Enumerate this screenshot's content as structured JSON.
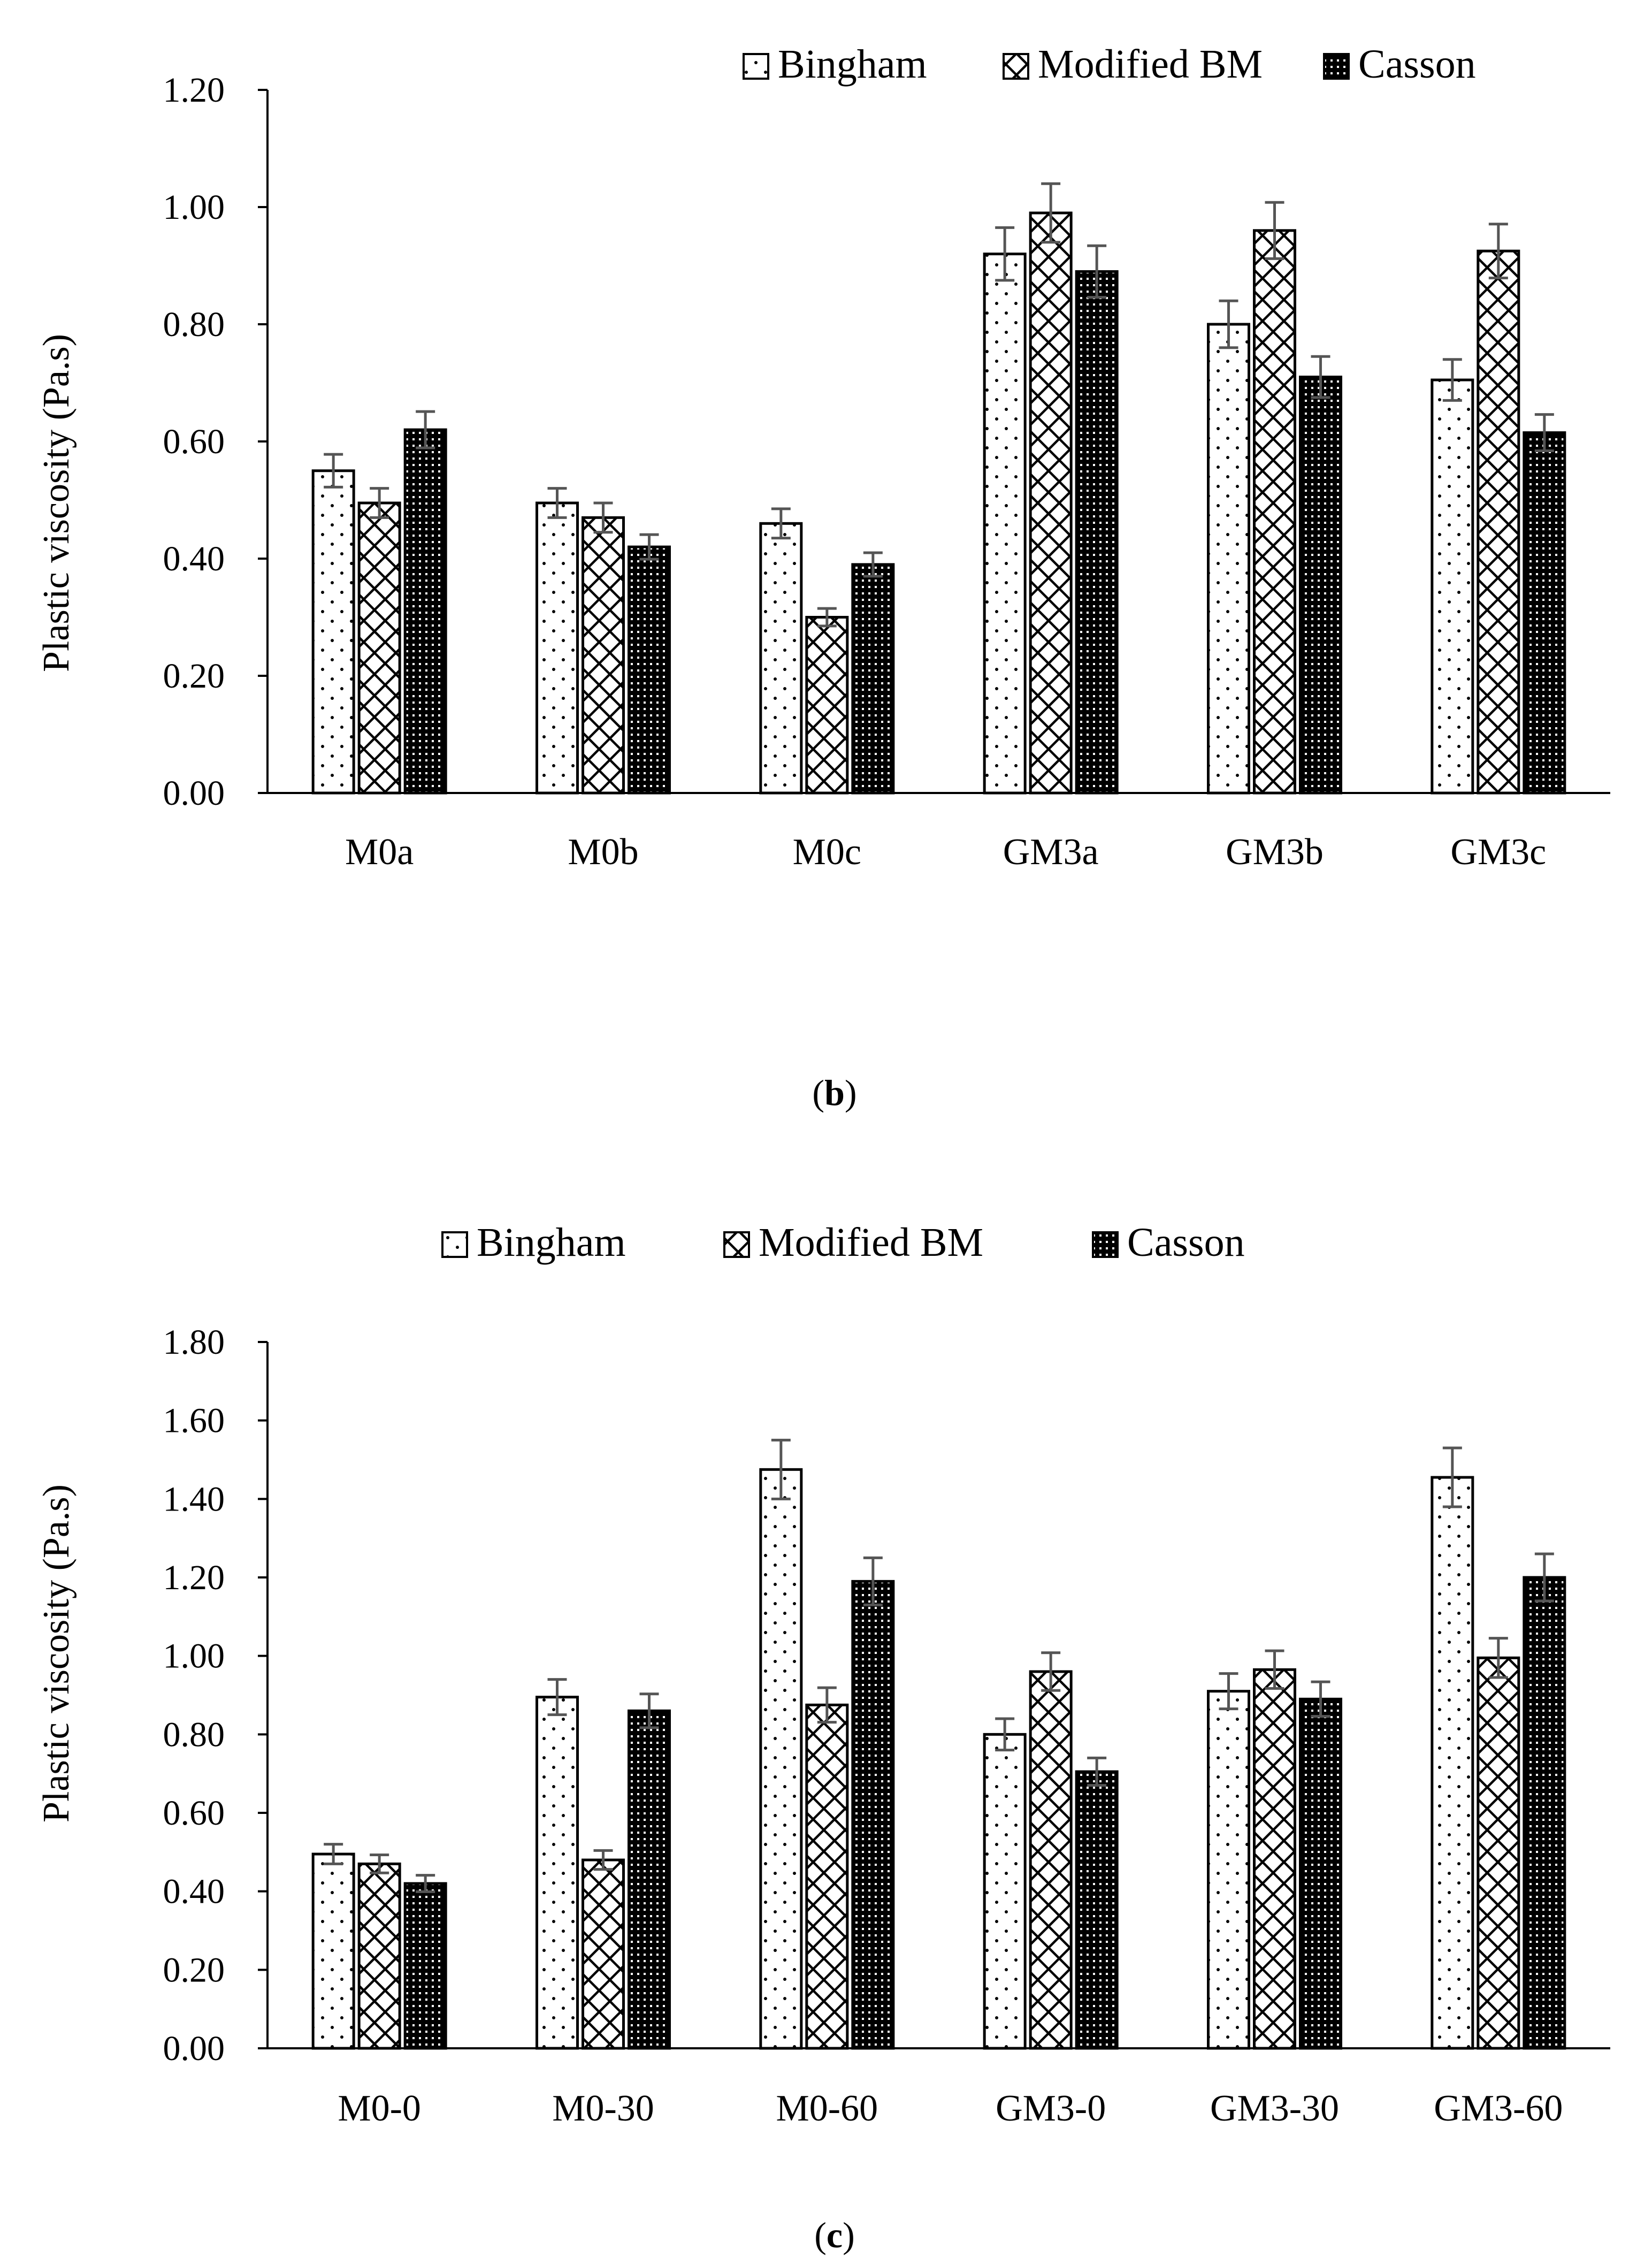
{
  "legend_labels": [
    "Bingham",
    "Modified BM",
    "Casson"
  ],
  "chart_data": [
    {
      "panel": "b",
      "type": "bar",
      "caption": "(b)",
      "ylabel": "Plastic viscosity (Pa.s)",
      "xlabel": "",
      "categories": [
        "M0a",
        "M0b",
        "M0c",
        "GM3a",
        "GM3b",
        "GM3c"
      ],
      "ylim": [
        0,
        1.2
      ],
      "yticks": [
        "0.00",
        "0.20",
        "0.40",
        "0.60",
        "0.80",
        "1.00",
        "1.20"
      ],
      "legend_position": "top-right",
      "grid": false,
      "series": [
        {
          "name": "Bingham",
          "values": [
            0.55,
            0.495,
            0.46,
            0.92,
            0.8,
            0.705
          ],
          "errors": [
            0.028,
            0.025,
            0.025,
            0.045,
            0.04,
            0.035
          ]
        },
        {
          "name": "Modified BM",
          "values": [
            0.495,
            0.47,
            0.3,
            0.99,
            0.96,
            0.925
          ],
          "errors": [
            0.025,
            0.025,
            0.015,
            0.05,
            0.048,
            0.046
          ]
        },
        {
          "name": "Casson",
          "values": [
            0.62,
            0.42,
            0.39,
            0.89,
            0.71,
            0.615
          ],
          "errors": [
            0.031,
            0.021,
            0.02,
            0.044,
            0.035,
            0.031
          ]
        }
      ]
    },
    {
      "panel": "c",
      "type": "bar",
      "caption": "(c)",
      "ylabel": "Plastic viscosity (Pa.s)",
      "xlabel": "",
      "categories": [
        "M0-0",
        "M0-30",
        "M0-60",
        "GM3-0",
        "GM3-30",
        "GM3-60"
      ],
      "ylim": [
        0,
        1.8
      ],
      "yticks": [
        "0.00",
        "0.20",
        "0.40",
        "0.60",
        "0.80",
        "1.00",
        "1.20",
        "1.40",
        "1.60",
        "1.80"
      ],
      "legend_position": "top-center",
      "grid": false,
      "series": [
        {
          "name": "Bingham",
          "values": [
            0.495,
            0.895,
            1.475,
            0.8,
            0.91,
            1.455
          ],
          "errors": [
            0.025,
            0.045,
            0.075,
            0.04,
            0.045,
            0.075
          ]
        },
        {
          "name": "Modified BM",
          "values": [
            0.47,
            0.48,
            0.875,
            0.96,
            0.965,
            0.995
          ],
          "errors": [
            0.023,
            0.024,
            0.044,
            0.048,
            0.048,
            0.05
          ]
        },
        {
          "name": "Casson",
          "values": [
            0.42,
            0.86,
            1.19,
            0.705,
            0.89,
            1.2
          ],
          "errors": [
            0.021,
            0.043,
            0.06,
            0.035,
            0.044,
            0.06
          ]
        }
      ]
    }
  ]
}
